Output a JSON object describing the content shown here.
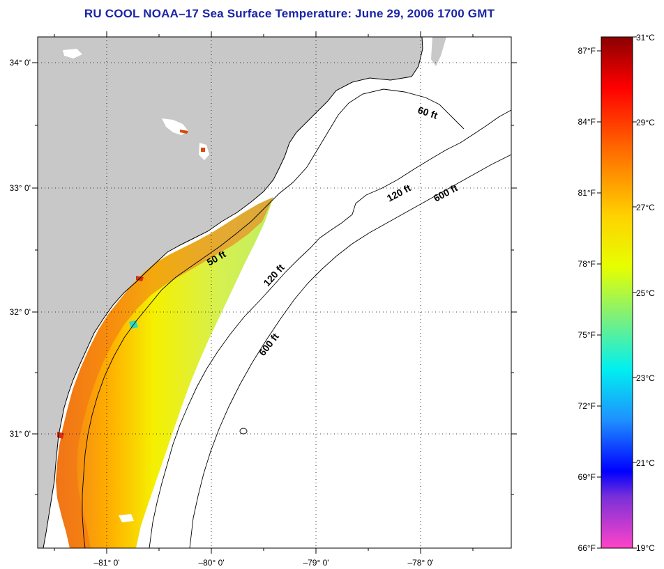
{
  "title": "RU COOL  NOAA–17  Sea Surface Temperature:  June 29, 2006 1700 GMT",
  "map": {
    "lat_ticks": [
      "34° 0'",
      "33° 0'",
      "32° 0'",
      "31° 0'"
    ],
    "lon_ticks": [
      "–81° 0'",
      "–80° 0'",
      "–79° 0'",
      "–78° 0'"
    ],
    "isobaths": [
      {
        "text": "50 ft",
        "depth": "50"
      },
      {
        "text": "120 ft",
        "depth": "120"
      },
      {
        "text": "600 ft",
        "depth": "600"
      },
      {
        "text": "60 ft",
        "depth": "60"
      },
      {
        "text": "120 ft",
        "depth": "120"
      },
      {
        "text": "600 ft",
        "depth": "600"
      }
    ],
    "colors": {
      "land": "#c8c8c8",
      "ocean": "#ffffff",
      "title": "#1a24a8"
    }
  },
  "colorbar": {
    "fahrenheit_labels": [
      "87°F",
      "84°F",
      "81°F",
      "78°F",
      "75°F",
      "72°F",
      "69°F",
      "66°F"
    ],
    "celsius_labels": [
      "31°C",
      "29°C",
      "27°C",
      "25°C",
      "23°C",
      "21°C",
      "19°C"
    ],
    "range_celsius": [
      19,
      31
    ],
    "colors_bottom_to_top": [
      "#ff44c8",
      "#8a2be2",
      "#0000ff",
      "#00bfff",
      "#00ffff",
      "#7cfc7c",
      "#ffff00",
      "#ffa500",
      "#ff4500",
      "#ff0000",
      "#8b0000"
    ]
  }
}
